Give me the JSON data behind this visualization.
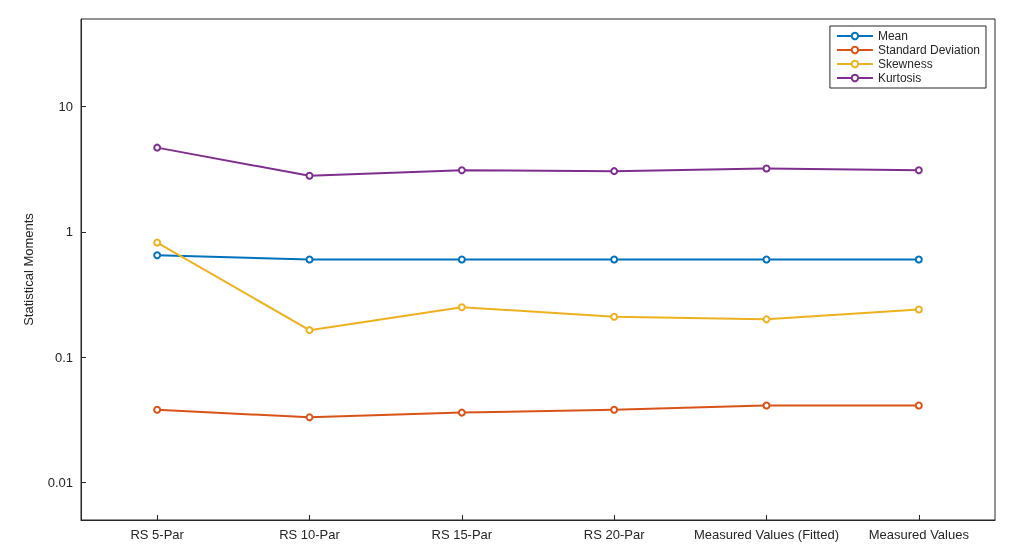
{
  "chart_data": {
    "type": "line",
    "ylabel": "Statistical Moments",
    "categories": [
      "RS 5-Par",
      "RS 10-Par",
      "RS 15-Par",
      "RS 20-Par",
      "Measured Values (Fitted)",
      "Measured Values"
    ],
    "series": [
      {
        "name": "Mean",
        "color": "#0072bd",
        "values": [
          0.65,
          0.6,
          0.6,
          0.6,
          0.6,
          0.6
        ]
      },
      {
        "name": "Standard Deviation",
        "color": "#d95319",
        "values": [
          0.038,
          0.033,
          0.036,
          0.038,
          0.041,
          0.041
        ]
      },
      {
        "name": "Skewness",
        "color": "#edb120",
        "values": [
          0.82,
          0.164,
          0.25,
          0.21,
          0.2,
          0.24
        ]
      },
      {
        "name": "Kurtosis",
        "color": "#7e2f8e",
        "values": [
          4.7,
          2.8,
          3.1,
          3.05,
          3.2,
          3.1
        ]
      }
    ],
    "log": "y",
    "ylim": [
      0.005,
      50
    ],
    "yticks": [
      0.01,
      0.1,
      1,
      10
    ],
    "grid": false,
    "legend": "top right",
    "marker": "circle",
    "line_style": "solid"
  }
}
